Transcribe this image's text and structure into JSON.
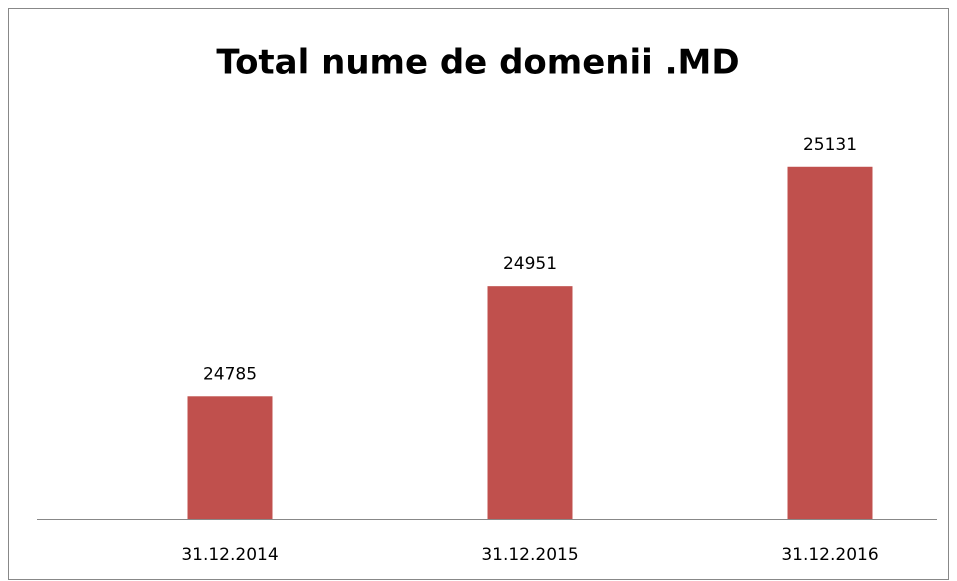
{
  "chart_data": {
    "type": "bar",
    "title": "Total nume de domenii .MD",
    "categories": [
      "31.12.2014",
      "31.12.2015",
      "31.12.2016"
    ],
    "values": [
      24785,
      24951,
      25131
    ],
    "color": "#c0504d",
    "ylim": [
      24600,
      25200
    ]
  }
}
